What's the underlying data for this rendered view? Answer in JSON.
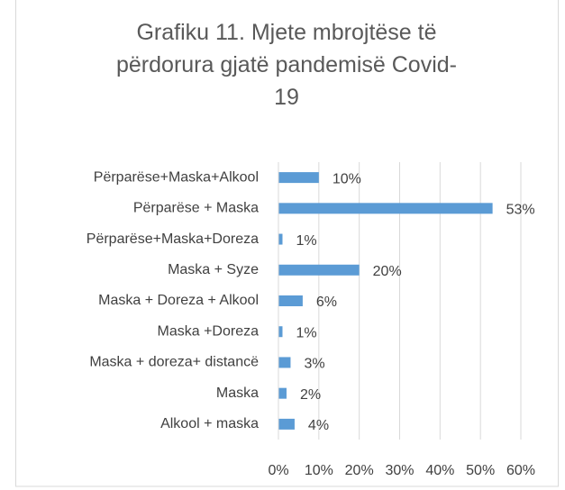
{
  "chart_data": {
    "type": "bar",
    "orientation": "horizontal",
    "title": "Grafiku 11. Mjete mbrojtëse të përdorura gjatë pandemisë Covid-19",
    "categories": [
      "Përparëse+Maska+Alkool",
      "Përparëse + Maska",
      "Përparëse+Maska+Doreza",
      "Maska + Syze",
      "Maska + Doreza + Alkool",
      "Maska +Doreza",
      "Maska + doreza+ distancë",
      "Maska",
      "Alkool + maska"
    ],
    "values": [
      10,
      53,
      1,
      20,
      6,
      1,
      3,
      2,
      4
    ],
    "value_labels": [
      "10%",
      "53%",
      "1%",
      "20%",
      "6%",
      "1%",
      "3%",
      "2%",
      "4%"
    ],
    "color": "#5b9bd5",
    "xlim": [
      0,
      60
    ],
    "xticks": [
      {
        "value": 0,
        "label": "0%"
      },
      {
        "value": 10,
        "label": "10%"
      },
      {
        "value": 20,
        "label": "20%"
      },
      {
        "value": 30,
        "label": "30%"
      },
      {
        "value": 40,
        "label": "40%"
      },
      {
        "value": 50,
        "label": "50%"
      },
      {
        "value": 60,
        "label": "60%"
      }
    ],
    "grid": true
  }
}
